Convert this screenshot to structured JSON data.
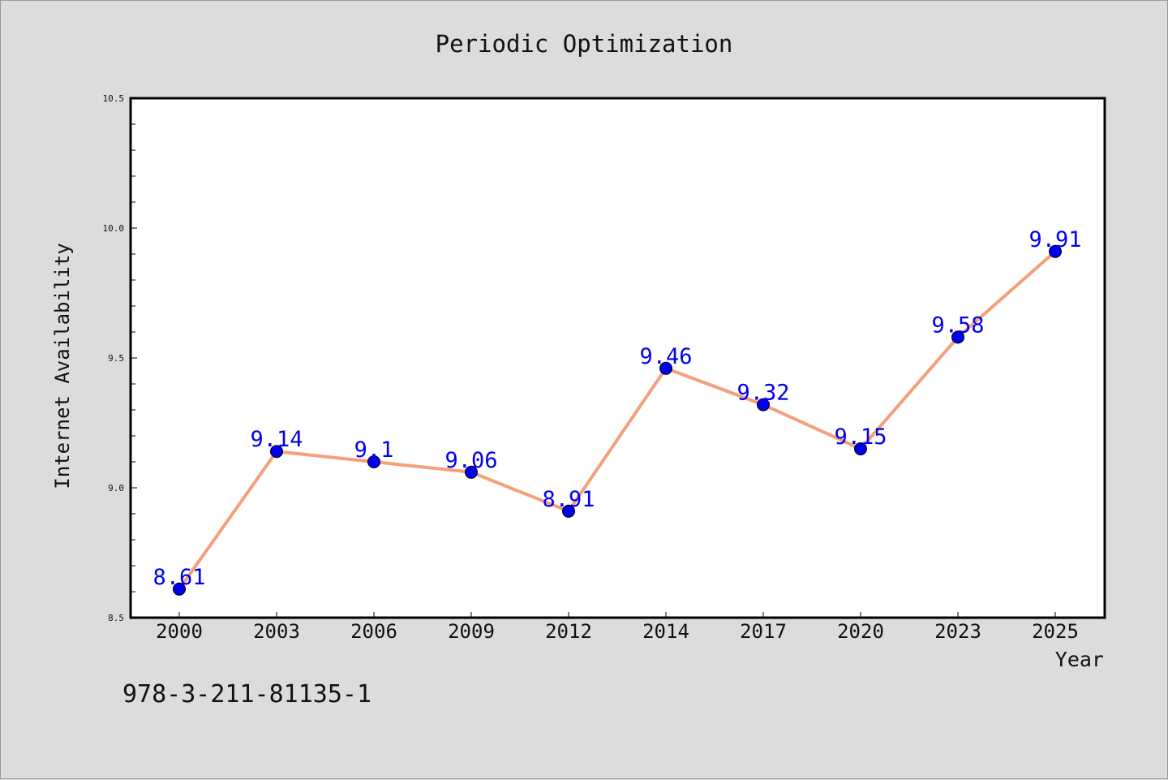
{
  "chart_data": {
    "type": "line",
    "title": "Periodic Optimization",
    "xlabel": "Year",
    "ylabel": "Internet Availability",
    "categories": [
      "2000",
      "2003",
      "2006",
      "2009",
      "2012",
      "2014",
      "2017",
      "2020",
      "2023",
      "2025"
    ],
    "series": [
      {
        "values": [
          8.61,
          9.14,
          9.1,
          9.06,
          8.91,
          9.46,
          9.32,
          9.15,
          9.58,
          9.91
        ],
        "data_labels": [
          "8.61",
          "9.14",
          "9.1",
          "9.06",
          "8.91",
          "9.46",
          "9.32",
          "9.15",
          "9.58",
          "9.91"
        ],
        "line_color": "#f4a07a",
        "marker_color": "#0000ee"
      }
    ],
    "ylim": [
      8.5,
      10.5
    ],
    "yticks": [
      "8.5",
      "9.0",
      "9.5",
      "10.0",
      "10.5"
    ],
    "grid": false,
    "annotation": "978-3-211-81135-1"
  }
}
